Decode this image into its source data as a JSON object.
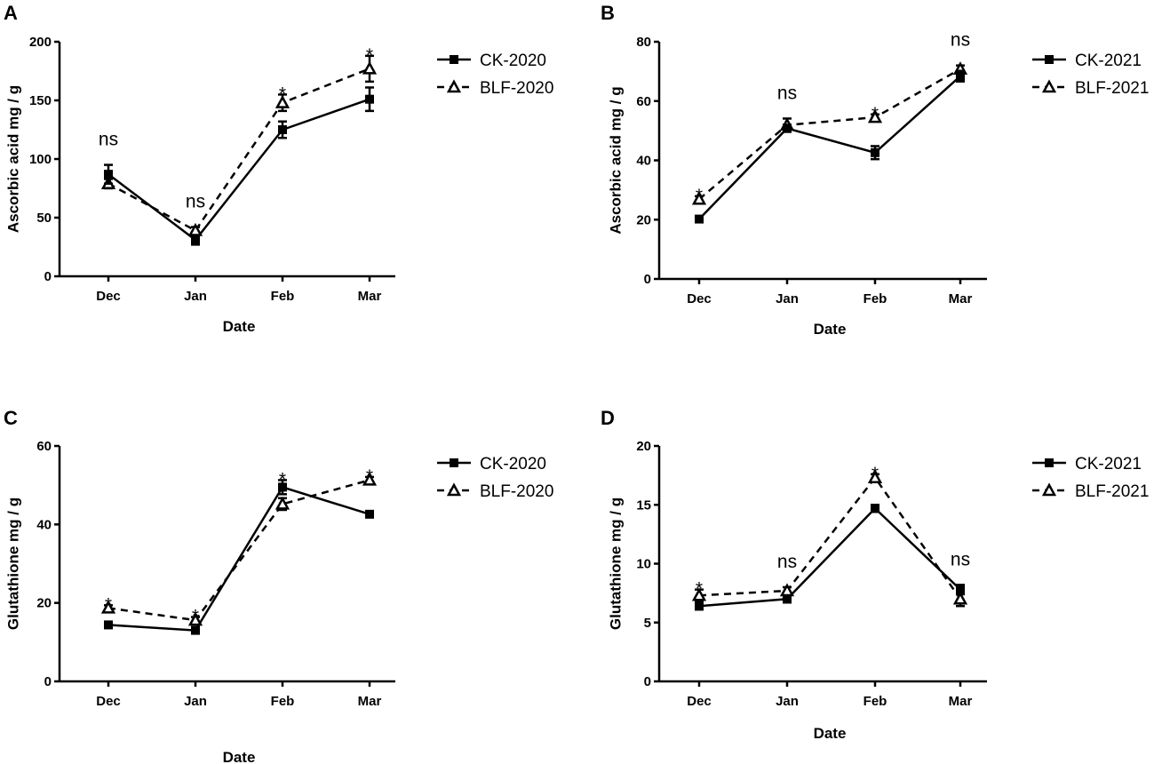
{
  "chart_data": [
    {
      "panel": "A",
      "type": "line",
      "categories": [
        "Dec",
        "Jan",
        "Feb",
        "Mar"
      ],
      "series": [
        {
          "name": "CK-2020",
          "marker": "square",
          "line": "solid",
          "values": [
            87,
            31,
            125,
            151
          ],
          "errors": [
            8,
            4,
            7,
            10
          ]
        },
        {
          "name": "BLF-2020",
          "marker": "triangle",
          "line": "dashed",
          "values": [
            79,
            39,
            148,
            177
          ],
          "errors": [
            4,
            3,
            7,
            11
          ]
        }
      ],
      "annotations": [
        "ns",
        "ns",
        "*",
        "*"
      ],
      "xlabel": "Date",
      "ylabel": "Ascorbic acid mg / g",
      "ylim": [
        0,
        200
      ],
      "yticks": [
        "0",
        "50",
        "100",
        "150",
        "200"
      ]
    },
    {
      "panel": "B",
      "type": "line",
      "categories": [
        "Dec",
        "Jan",
        "Feb",
        "Mar"
      ],
      "series": [
        {
          "name": "CK-2021",
          "marker": "square",
          "line": "solid",
          "values": [
            20.2,
            50.8,
            42.6,
            68.4
          ],
          "errors": [
            0.8,
            1.2,
            2.2,
            1.8
          ]
        },
        {
          "name": "BLF-2021",
          "marker": "triangle",
          "line": "dashed",
          "values": [
            26.9,
            51.9,
            54.5,
            70.8
          ],
          "errors": [
            1.0,
            2.2,
            1.0,
            1.2
          ]
        }
      ],
      "annotations": [
        "*",
        "ns",
        "*",
        "ns"
      ],
      "xlabel": "Date",
      "ylabel": "Ascorbic acid mg / g",
      "ylim": [
        0,
        80
      ],
      "yticks": [
        "0",
        "20",
        "40",
        "60",
        "80"
      ]
    },
    {
      "panel": "C",
      "type": "line",
      "categories": [
        "Dec",
        "Jan",
        "Feb",
        "Mar"
      ],
      "series": [
        {
          "name": "CK-2020",
          "marker": "square",
          "line": "solid",
          "values": [
            14.4,
            13.0,
            49.5,
            42.6
          ],
          "errors": [
            0.8,
            0.8,
            1.8,
            0.6
          ]
        },
        {
          "name": "BLF-2020",
          "marker": "triangle",
          "line": "dashed",
          "values": [
            18.7,
            15.6,
            45.2,
            51.3
          ],
          "errors": [
            0.7,
            0.8,
            1.5,
            0.8
          ]
        }
      ],
      "annotations": [
        "*",
        "*",
        "*",
        "*"
      ],
      "xlabel": "Date",
      "ylabel": "Glutathione mg / g",
      "ylim": [
        0,
        60
      ],
      "yticks": [
        "0",
        "20",
        "40",
        "60"
      ]
    },
    {
      "panel": "D",
      "type": "line",
      "categories": [
        "Dec",
        "Jan",
        "Feb",
        "Mar"
      ],
      "series": [
        {
          "name": "CK-2021",
          "marker": "square",
          "line": "solid",
          "values": [
            6.4,
            7.0,
            14.7,
            7.8
          ],
          "errors": [
            0.3,
            0.3,
            0.3,
            0.4
          ]
        },
        {
          "name": "BLF-2021",
          "marker": "triangle",
          "line": "dashed",
          "values": [
            7.3,
            7.7,
            17.3,
            7.0
          ],
          "errors": [
            0.5,
            0.3,
            0.3,
            0.6
          ]
        }
      ],
      "annotations": [
        "*",
        "ns",
        "*",
        "ns"
      ],
      "xlabel": "Date",
      "ylabel": "Glutathione mg / g",
      "ylim": [
        0,
        20
      ],
      "yticks": [
        "0",
        "5",
        "10",
        "15",
        "20"
      ]
    }
  ]
}
